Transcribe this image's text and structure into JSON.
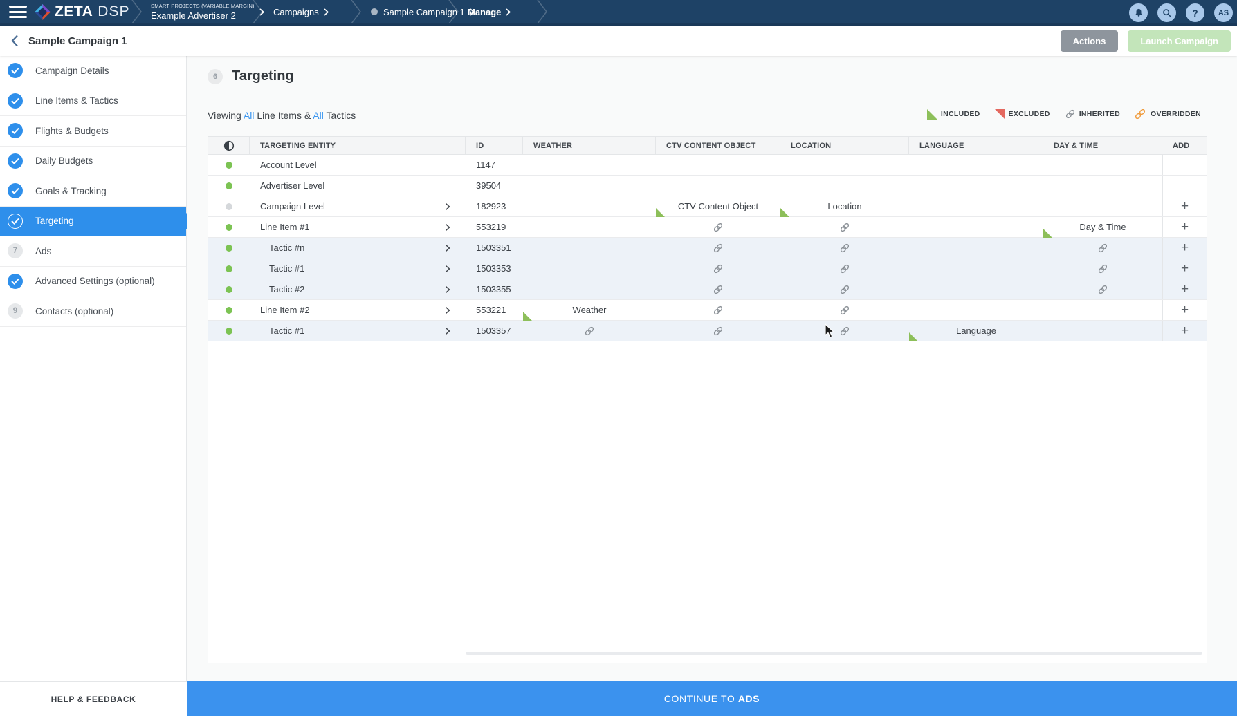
{
  "topbar": {
    "brand": {
      "zeta": "ZETA",
      "dsp": "DSP"
    },
    "breadcrumbs": [
      {
        "supertext": "SMART PROJECTS (VARIABLE MARGIN)",
        "label": "Example Advertiser 2"
      },
      {
        "label": "Campaigns"
      },
      {
        "label": "Sample Campaign 1"
      },
      {
        "label": "Manage"
      }
    ],
    "avatar": "AS"
  },
  "header": {
    "title": "Sample Campaign 1",
    "actions_label": "Actions",
    "launch_label": "Launch Campaign"
  },
  "sidebar": {
    "items": [
      {
        "label": "Campaign Details",
        "state": "done"
      },
      {
        "label": "Line Items & Tactics",
        "state": "done"
      },
      {
        "label": "Flights & Budgets",
        "state": "done"
      },
      {
        "label": "Daily Budgets",
        "state": "done"
      },
      {
        "label": "Goals & Tracking",
        "state": "done"
      },
      {
        "label": "Targeting",
        "state": "active"
      },
      {
        "label": "Ads",
        "state": "todo",
        "number": "7"
      },
      {
        "label": "Advanced Settings (optional)",
        "state": "done"
      },
      {
        "label": "Contacts (optional)",
        "state": "todo",
        "number": "9"
      }
    ],
    "help_label": "HELP & FEEDBACK"
  },
  "main": {
    "step_number": "6",
    "title": "Targeting",
    "viewing": {
      "prefix": "Viewing ",
      "all1": "All",
      "mid": " Line Items & ",
      "all2": "All",
      "suffix": " Tactics"
    },
    "legend": [
      {
        "type": "included",
        "label": "INCLUDED"
      },
      {
        "type": "excluded",
        "label": "EXCLUDED"
      },
      {
        "type": "inherited",
        "label": "INHERITED"
      },
      {
        "type": "overridden",
        "label": "OVERRIDDEN"
      }
    ],
    "table": {
      "columns": [
        "TARGETING ENTITY",
        "ID",
        "WEATHER",
        "CTV CONTENT OBJECT",
        "LOCATION",
        "LANGUAGE",
        "DAY & TIME",
        "ADD"
      ],
      "rows": [
        {
          "entity": "Account Level",
          "id": "1147",
          "dot": "green",
          "tactic": false,
          "expand": false,
          "add": false,
          "cells": {}
        },
        {
          "entity": "Advertiser Level",
          "id": "39504",
          "dot": "green",
          "tactic": false,
          "expand": false,
          "add": false,
          "cells": {}
        },
        {
          "entity": "Campaign Level",
          "id": "182923",
          "dot": "gray",
          "tactic": false,
          "expand": true,
          "add": true,
          "cells": {
            "ctv": {
              "type": "included",
              "label": "CTV Content Object"
            },
            "location": {
              "type": "included",
              "label": "Location"
            }
          }
        },
        {
          "entity": "Line Item #1",
          "id": "553219",
          "dot": "green",
          "tactic": false,
          "expand": true,
          "add": true,
          "cells": {
            "ctv": {
              "type": "inherited"
            },
            "location": {
              "type": "inherited"
            },
            "daytime": {
              "type": "included",
              "label": "Day & Time"
            }
          }
        },
        {
          "entity": "Tactic #n",
          "id": "1503351",
          "dot": "green",
          "tactic": true,
          "expand": true,
          "add": true,
          "cells": {
            "ctv": {
              "type": "inherited"
            },
            "location": {
              "type": "inherited"
            },
            "daytime": {
              "type": "inherited"
            }
          }
        },
        {
          "entity": "Tactic #1",
          "id": "1503353",
          "dot": "green",
          "tactic": true,
          "expand": true,
          "add": true,
          "cells": {
            "ctv": {
              "type": "inherited"
            },
            "location": {
              "type": "inherited"
            },
            "daytime": {
              "type": "inherited"
            }
          }
        },
        {
          "entity": "Tactic #2",
          "id": "1503355",
          "dot": "green",
          "tactic": true,
          "expand": true,
          "add": true,
          "cells": {
            "ctv": {
              "type": "inherited"
            },
            "location": {
              "type": "inherited"
            },
            "daytime": {
              "type": "inherited"
            }
          }
        },
        {
          "entity": "Line Item #2",
          "id": "553221",
          "dot": "green",
          "tactic": false,
          "expand": true,
          "add": true,
          "cells": {
            "weather": {
              "type": "included",
              "label": "Weather"
            },
            "ctv": {
              "type": "inherited"
            },
            "location": {
              "type": "inherited"
            }
          }
        },
        {
          "entity": "Tactic #1",
          "id": "1503357",
          "dot": "green",
          "tactic": true,
          "expand": true,
          "add": true,
          "cells": {
            "weather": {
              "type": "inherited"
            },
            "ctv": {
              "type": "inherited"
            },
            "location": {
              "type": "inherited"
            },
            "language": {
              "type": "included",
              "label": "Language"
            }
          }
        }
      ]
    }
  },
  "footer": {
    "continue_prefix": "CONTINUE TO ",
    "continue_bold": "ADS"
  },
  "colors": {
    "topbar": "#1e4266",
    "accent_blue": "#2e8feb",
    "link_blue": "#3b96f0",
    "included_green": "#8dbf5a",
    "excluded_red": "#e4685f",
    "inherited_gray": "#8a9096",
    "overridden_orange": "#f09b3c",
    "status_green": "#7cc353",
    "status_gray": "#d5d8db",
    "launch_green": "#c3e5ba",
    "actions_gray": "#8e959d",
    "continue_blue": "#3b92ee"
  }
}
